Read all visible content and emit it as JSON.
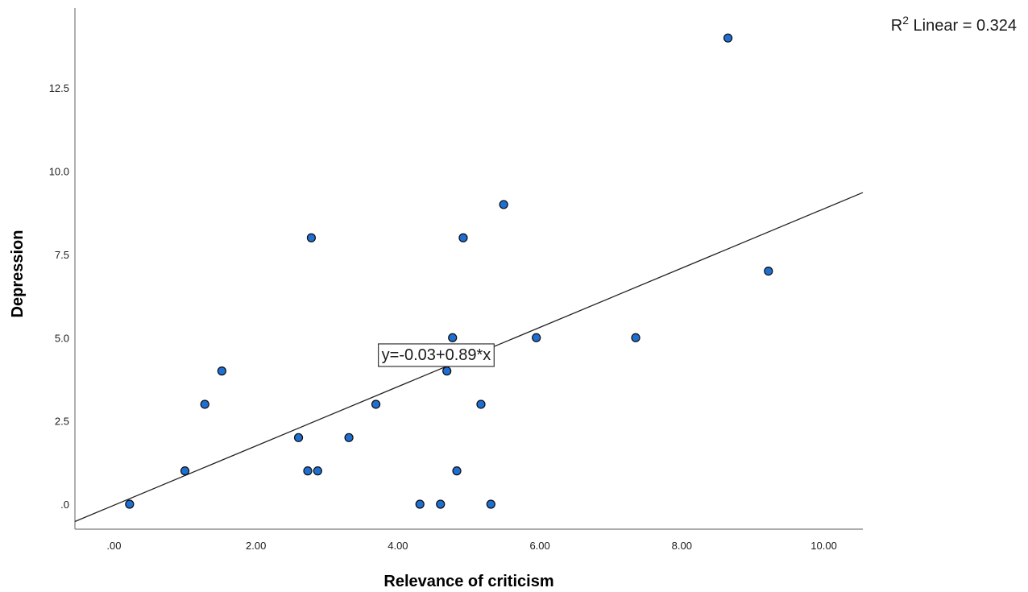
{
  "chart_data": {
    "type": "scatter",
    "xlabel": "Relevance of criticism",
    "ylabel": "Depression",
    "xlim": [
      -0.55,
      10.55
    ],
    "ylim": [
      -0.75,
      14.9
    ],
    "x_ticks": [
      0,
      2,
      4,
      6,
      8,
      10
    ],
    "x_tick_labels": [
      ".00",
      "2.00",
      "4.00",
      "6.00",
      "8.00",
      "10.00"
    ],
    "y_ticks": [
      0,
      2.5,
      5,
      7.5,
      10,
      12.5
    ],
    "y_tick_labels": [
      ".0",
      "2.5",
      "5.0",
      "7.5",
      "10.0",
      "12.5"
    ],
    "grid": false,
    "points": [
      {
        "x": 0.22,
        "y": 0
      },
      {
        "x": 1.0,
        "y": 1
      },
      {
        "x": 1.28,
        "y": 3
      },
      {
        "x": 1.52,
        "y": 4
      },
      {
        "x": 2.6,
        "y": 2
      },
      {
        "x": 2.73,
        "y": 1
      },
      {
        "x": 2.78,
        "y": 8
      },
      {
        "x": 2.87,
        "y": 1
      },
      {
        "x": 3.31,
        "y": 2
      },
      {
        "x": 3.69,
        "y": 3
      },
      {
        "x": 4.31,
        "y": 0
      },
      {
        "x": 4.6,
        "y": 0
      },
      {
        "x": 4.69,
        "y": 4
      },
      {
        "x": 4.77,
        "y": 5
      },
      {
        "x": 4.83,
        "y": 1
      },
      {
        "x": 4.92,
        "y": 8
      },
      {
        "x": 5.17,
        "y": 3
      },
      {
        "x": 5.31,
        "y": 0
      },
      {
        "x": 5.49,
        "y": 9
      },
      {
        "x": 5.95,
        "y": 5
      },
      {
        "x": 7.35,
        "y": 5
      },
      {
        "x": 8.65,
        "y": 14
      },
      {
        "x": 9.22,
        "y": 7
      }
    ],
    "fit_line": {
      "intercept": -0.03,
      "slope": 0.89,
      "x_range": [
        -0.55,
        10.55
      ]
    },
    "equation_label": "y=-0.03+0.89*x",
    "equation_anchor": {
      "x": 4.54,
      "y": 4.5
    },
    "r2_prefix": "R",
    "r2_sup": "2",
    "r2_suffix": " Linear = 0.324",
    "colors": {
      "marker_fill": "#1f6fd1",
      "marker_stroke": "#0b0b0b",
      "line": "#222222",
      "axis": "#7a7a7a"
    }
  }
}
